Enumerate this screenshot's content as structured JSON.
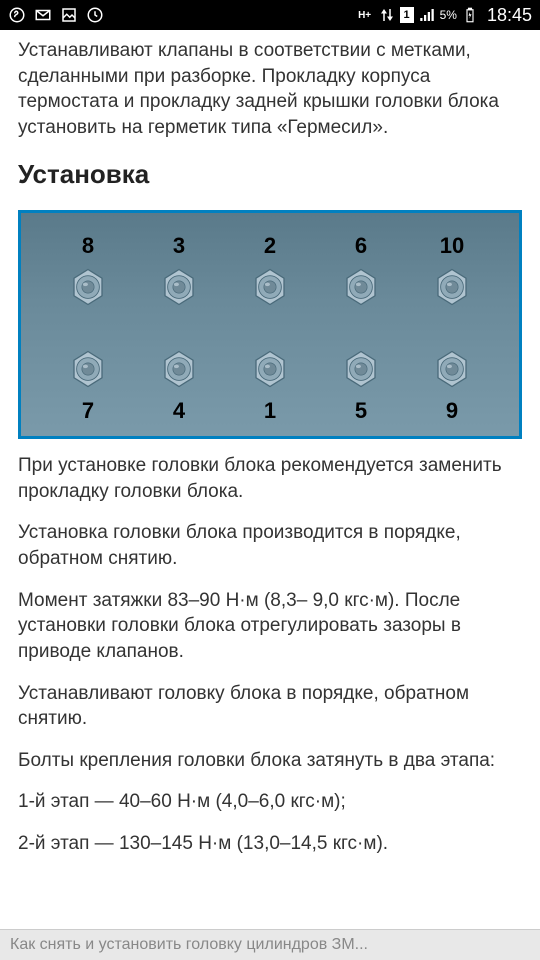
{
  "status": {
    "time": "18:45",
    "battery": "5%",
    "signal_label": "1"
  },
  "content": {
    "p1": "Устанавливают клапаны в соответствии с метками, сделанными при разборке. Прокладку корпуса термостата и прокладку задней крышки головки блока установить на герметик типа «Гермесил».",
    "heading": "Установка",
    "p2": "При установке головки блока рекомендуется заменить прокладку головки блока.",
    "p3": "Установка головки блока производится в порядке, обратном снятию.",
    "p4": "Момент затяжки 83–90 Н·м (8,3– 9,0 кгс·м). После установки головки блока отрегулировать зазоры в приводе клапанов.",
    "p5": "Устанавливают головку блока в порядке, обратном снятию.",
    "p6": "Болты крепления головки блока затянуть в два этапа:",
    "p7": "1-й этап — 40–60 Н·м (4,0–6,0 кгс·м);",
    "p8": "2-й этап — 130–145 Н·м (13,0–14,5 кгс·м)."
  },
  "diagram": {
    "type": "infographic",
    "border_color": "#0080c0",
    "background_gradient": [
      "#5a7a8a",
      "#7a9aaa"
    ],
    "bolt_colors": {
      "hex_fill": "#b0c4d0",
      "hex_stroke": "#4a6a7a",
      "circle_fill": "#90aab8",
      "inner": "#708a98"
    },
    "top_row": [
      "8",
      "3",
      "2",
      "6",
      "10"
    ],
    "bottom_row": [
      "7",
      "4",
      "1",
      "5",
      "9"
    ],
    "label_fontsize": 22,
    "label_color": "#000000"
  },
  "footer": {
    "text": "Как снять и установить головку цилиндров ЗМ..."
  }
}
